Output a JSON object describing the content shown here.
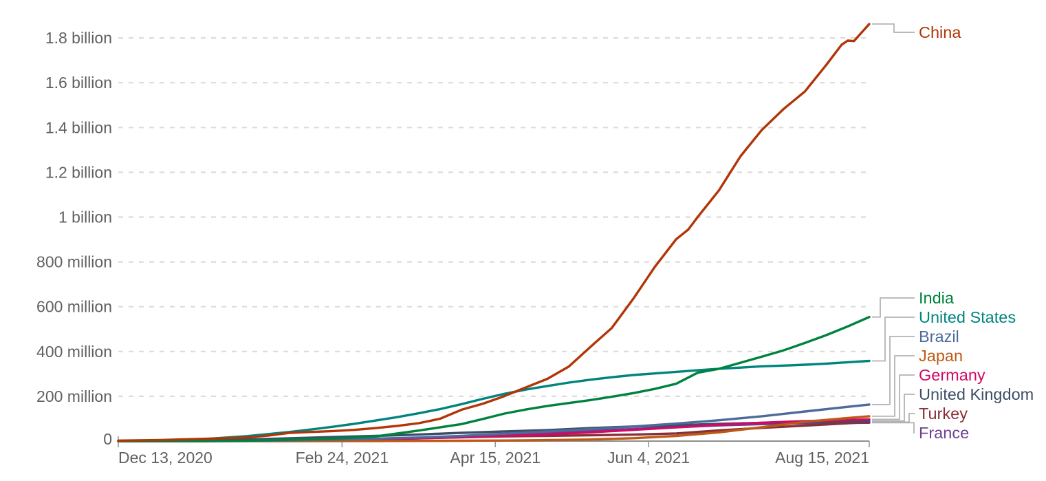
{
  "chart_data": {
    "type": "line",
    "title": "",
    "grid": true,
    "legend_position": "right-end-labels",
    "x_axis": {
      "domain_days": [
        0,
        245
      ],
      "ticks": [
        {
          "label": "Dec 13, 2020",
          "day": 0,
          "align": "start"
        },
        {
          "label": "Feb 24, 2021",
          "day": 73,
          "align": "middle"
        },
        {
          "label": "Apr 15, 2021",
          "day": 123,
          "align": "middle"
        },
        {
          "label": "Jun 4, 2021",
          "day": 173,
          "align": "middle"
        },
        {
          "label": "Aug 15, 2021",
          "day": 245,
          "align": "end"
        }
      ]
    },
    "y_axis": {
      "unit": "doses",
      "ylim": [
        0,
        1900
      ],
      "ticks": [
        {
          "value": 0,
          "label": "0"
        },
        {
          "value": 200,
          "label": "200 million"
        },
        {
          "value": 400,
          "label": "400 million"
        },
        {
          "value": 600,
          "label": "600 million"
        },
        {
          "value": 800,
          "label": "800 million"
        },
        {
          "value": 1000,
          "label": "1 billion"
        },
        {
          "value": 1200,
          "label": "1.2 billion"
        },
        {
          "value": 1400,
          "label": "1.4 billion"
        },
        {
          "value": 1600,
          "label": "1.6 billion"
        },
        {
          "value": 1800,
          "label": "1.8 billion"
        }
      ]
    },
    "series": [
      {
        "name": "China",
        "color": "#B13507",
        "end_value_millions": 1862,
        "points": [
          [
            0,
            2
          ],
          [
            14,
            5
          ],
          [
            28,
            10
          ],
          [
            42,
            16
          ],
          [
            49,
            25
          ],
          [
            56,
            37
          ],
          [
            63,
            41
          ],
          [
            70,
            45
          ],
          [
            77,
            50
          ],
          [
            84,
            58
          ],
          [
            91,
            68
          ],
          [
            98,
            80
          ],
          [
            105,
            100
          ],
          [
            112,
            140
          ],
          [
            119,
            167
          ],
          [
            126,
            201
          ],
          [
            133,
            240
          ],
          [
            140,
            278
          ],
          [
            147,
            333
          ],
          [
            154,
            420
          ],
          [
            161,
            505
          ],
          [
            168,
            635
          ],
          [
            175,
            777
          ],
          [
            182,
            901
          ],
          [
            186,
            945
          ],
          [
            189,
            1000
          ],
          [
            196,
            1120
          ],
          [
            203,
            1272
          ],
          [
            210,
            1390
          ],
          [
            217,
            1482
          ],
          [
            224,
            1561
          ],
          [
            231,
            1680
          ],
          [
            236,
            1770
          ],
          [
            238,
            1788
          ],
          [
            240,
            1786
          ],
          [
            245,
            1862
          ]
        ]
      },
      {
        "name": "India",
        "color": "#00823F",
        "end_value_millions": 554,
        "points": [
          [
            0,
            0
          ],
          [
            14,
            0.1
          ],
          [
            28,
            0.5
          ],
          [
            42,
            1.7
          ],
          [
            56,
            5.8
          ],
          [
            70,
            11
          ],
          [
            84,
            21
          ],
          [
            98,
            47
          ],
          [
            112,
            76
          ],
          [
            119,
            99
          ],
          [
            126,
            123
          ],
          [
            133,
            141
          ],
          [
            140,
            157
          ],
          [
            147,
            170
          ],
          [
            154,
            183
          ],
          [
            161,
            198
          ],
          [
            168,
            214
          ],
          [
            175,
            233
          ],
          [
            182,
            256
          ],
          [
            189,
            305
          ],
          [
            196,
            323
          ],
          [
            203,
            350
          ],
          [
            210,
            377
          ],
          [
            217,
            405
          ],
          [
            224,
            438
          ],
          [
            231,
            473
          ],
          [
            238,
            512
          ],
          [
            245,
            554
          ]
        ]
      },
      {
        "name": "United States",
        "color": "#00847E",
        "end_value_millions": 358,
        "points": [
          [
            0,
            0.6
          ],
          [
            14,
            2
          ],
          [
            28,
            9
          ],
          [
            42,
            22
          ],
          [
            56,
            41
          ],
          [
            63,
            52
          ],
          [
            70,
            64
          ],
          [
            77,
            77
          ],
          [
            84,
            92
          ],
          [
            91,
            107
          ],
          [
            98,
            124
          ],
          [
            105,
            143
          ],
          [
            112,
            165
          ],
          [
            119,
            189
          ],
          [
            126,
            211
          ],
          [
            133,
            230
          ],
          [
            140,
            246
          ],
          [
            147,
            261
          ],
          [
            154,
            274
          ],
          [
            161,
            285
          ],
          [
            168,
            295
          ],
          [
            175,
            302
          ],
          [
            182,
            309
          ],
          [
            189,
            316
          ],
          [
            196,
            323
          ],
          [
            203,
            328
          ],
          [
            210,
            334
          ],
          [
            217,
            337
          ],
          [
            224,
            341
          ],
          [
            231,
            346
          ],
          [
            238,
            352
          ],
          [
            245,
            358
          ]
        ]
      },
      {
        "name": "Brazil",
        "color": "#4C6A9C",
        "end_value_millions": 163,
        "points": [
          [
            0,
            0
          ],
          [
            28,
            0
          ],
          [
            35,
            0.2
          ],
          [
            42,
            0.7
          ],
          [
            56,
            3.6
          ],
          [
            70,
            6.7
          ],
          [
            84,
            11
          ],
          [
            98,
            16
          ],
          [
            112,
            23
          ],
          [
            126,
            33
          ],
          [
            140,
            43
          ],
          [
            154,
            53
          ],
          [
            168,
            65
          ],
          [
            182,
            78
          ],
          [
            196,
            93
          ],
          [
            210,
            111
          ],
          [
            224,
            132
          ],
          [
            238,
            153
          ],
          [
            245,
            163
          ]
        ]
      },
      {
        "name": "Japan",
        "color": "#BE5915",
        "end_value_millions": 111,
        "points": [
          [
            0,
            0
          ],
          [
            56,
            0.1
          ],
          [
            70,
            0.2
          ],
          [
            84,
            0.4
          ],
          [
            98,
            0.9
          ],
          [
            112,
            1.6
          ],
          [
            126,
            2.5
          ],
          [
            140,
            4.2
          ],
          [
            154,
            7
          ],
          [
            168,
            13
          ],
          [
            182,
            23
          ],
          [
            196,
            39
          ],
          [
            210,
            62
          ],
          [
            224,
            86
          ],
          [
            238,
            103
          ],
          [
            245,
            111
          ]
        ]
      },
      {
        "name": "Germany",
        "color": "#CF0A66",
        "end_value_millions": 97,
        "points": [
          [
            0,
            0
          ],
          [
            14,
            0.4
          ],
          [
            28,
            0.8
          ],
          [
            42,
            1.9
          ],
          [
            56,
            3.4
          ],
          [
            70,
            5.5
          ],
          [
            84,
            8.5
          ],
          [
            98,
            12.5
          ],
          [
            112,
            17
          ],
          [
            126,
            23
          ],
          [
            140,
            30
          ],
          [
            154,
            39
          ],
          [
            168,
            50
          ],
          [
            182,
            61
          ],
          [
            196,
            73
          ],
          [
            210,
            82
          ],
          [
            224,
            89
          ],
          [
            238,
            94
          ],
          [
            245,
            97
          ]
        ]
      },
      {
        "name": "United Kingdom",
        "color": "#3C4E66",
        "end_value_millions": 90,
        "points": [
          [
            0,
            0.6
          ],
          [
            14,
            1.1
          ],
          [
            28,
            2.9
          ],
          [
            42,
            7
          ],
          [
            56,
            12.7
          ],
          [
            70,
            18
          ],
          [
            84,
            23
          ],
          [
            98,
            29.5
          ],
          [
            112,
            37
          ],
          [
            126,
            43
          ],
          [
            140,
            49
          ],
          [
            154,
            58
          ],
          [
            168,
            65
          ],
          [
            182,
            71
          ],
          [
            196,
            77
          ],
          [
            210,
            81
          ],
          [
            224,
            85
          ],
          [
            238,
            88
          ],
          [
            245,
            90
          ]
        ]
      },
      {
        "name": "Turkey",
        "color": "#883039",
        "end_value_millions": 85,
        "points": [
          [
            0,
            0
          ],
          [
            28,
            0
          ],
          [
            32,
            0.3
          ],
          [
            42,
            1.5
          ],
          [
            56,
            3.2
          ],
          [
            70,
            6.8
          ],
          [
            84,
            10
          ],
          [
            98,
            14
          ],
          [
            112,
            17.5
          ],
          [
            126,
            21
          ],
          [
            140,
            23.5
          ],
          [
            154,
            26
          ],
          [
            168,
            29
          ],
          [
            182,
            34
          ],
          [
            189,
            41
          ],
          [
            196,
            48
          ],
          [
            210,
            59
          ],
          [
            224,
            69
          ],
          [
            238,
            80
          ],
          [
            245,
            85
          ]
        ]
      },
      {
        "name": "France",
        "color": "#6D3E91",
        "end_value_millions": 82,
        "points": [
          [
            0,
            0
          ],
          [
            14,
            0.1
          ],
          [
            28,
            0.3
          ],
          [
            42,
            1.3
          ],
          [
            56,
            2.8
          ],
          [
            70,
            4.8
          ],
          [
            84,
            7.7
          ],
          [
            98,
            12
          ],
          [
            112,
            18
          ],
          [
            126,
            26
          ],
          [
            140,
            35
          ],
          [
            154,
            45
          ],
          [
            168,
            54
          ],
          [
            182,
            62
          ],
          [
            196,
            70
          ],
          [
            210,
            76
          ],
          [
            224,
            80
          ],
          [
            238,
            81.5
          ],
          [
            245,
            82
          ]
        ]
      }
    ]
  }
}
